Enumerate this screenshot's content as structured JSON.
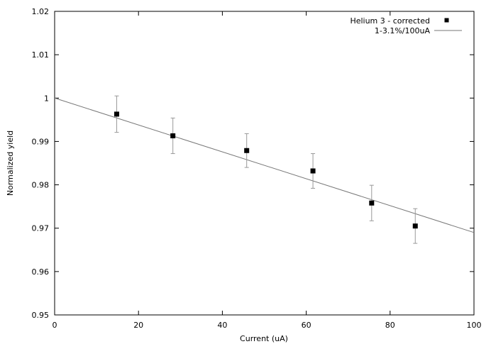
{
  "chart_data": {
    "type": "scatter",
    "xlabel": "Current (uA)",
    "ylabel": "Normalized yield",
    "xlim": [
      0,
      100
    ],
    "ylim": [
      0.95,
      1.02
    ],
    "x_ticks": [
      0,
      20,
      40,
      60,
      80,
      100
    ],
    "x_tick_labels": [
      "0",
      "20",
      "40",
      "60",
      "80",
      "100"
    ],
    "y_ticks": [
      0.95,
      0.96,
      0.97,
      0.98,
      0.99,
      1.0,
      1.01,
      1.02
    ],
    "y_tick_labels": [
      "0.95",
      "0.96",
      "0.97",
      "0.98",
      "0.99",
      "1",
      "1.01",
      "1.02"
    ],
    "grid": false,
    "legend_position": "top-right",
    "series": [
      {
        "name": "Helium 3 - corrected",
        "kind": "points-with-error-bars",
        "marker": "square",
        "color": "#000000",
        "errorbar_color": "#999999",
        "points": [
          {
            "x": 14.8,
            "y": 0.9963,
            "err": 0.0042
          },
          {
            "x": 28.2,
            "y": 0.9913,
            "err": 0.0041
          },
          {
            "x": 45.8,
            "y": 0.9879,
            "err": 0.0039
          },
          {
            "x": 61.6,
            "y": 0.9832,
            "err": 0.004
          },
          {
            "x": 75.6,
            "y": 0.9758,
            "err": 0.0041
          },
          {
            "x": 86.0,
            "y": 0.9705,
            "err": 0.004
          }
        ]
      },
      {
        "name": "1-3.1%/100uA",
        "kind": "line",
        "color": "#777777",
        "x": [
          0,
          100
        ],
        "y": [
          1.0,
          0.969
        ]
      }
    ]
  }
}
